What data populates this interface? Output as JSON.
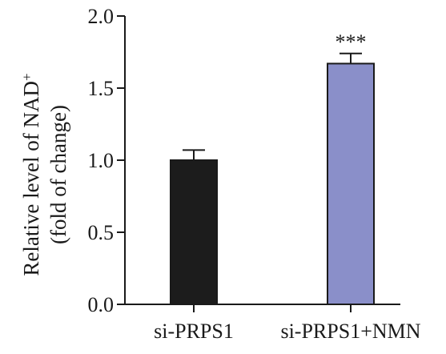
{
  "chart_data": {
    "type": "bar",
    "categories": [
      "si-PRPS1",
      "si-PRPS1+NMN"
    ],
    "values": [
      1.0,
      1.67
    ],
    "errors": [
      0.07,
      0.07
    ],
    "bar_colors": [
      "#1c1c1c",
      "#8a8fc9"
    ],
    "annotations": [
      "",
      "***"
    ],
    "ylabel_line1": "Relative level of NAD",
    "ylabel_sup": "+",
    "ylabel_line2": "(fold of change)",
    "yticks": [
      "0.0",
      "0.5",
      "1.0",
      "1.5",
      "2.0"
    ],
    "ylim": [
      0,
      2.0
    ],
    "grid": false
  }
}
